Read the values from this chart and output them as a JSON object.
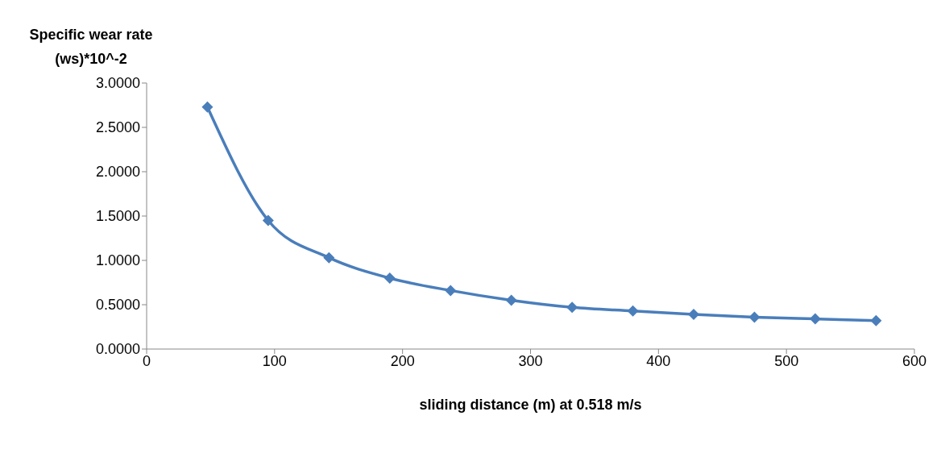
{
  "chart_data": {
    "type": "line",
    "ylabel": "Specific wear rate (ws)*10^-2",
    "xlabel": "sliding distance (m) at 0.518 m/s",
    "x": [
      47.5,
      95,
      142.5,
      190,
      237.5,
      285,
      332.5,
      380,
      427.5,
      475,
      522.5,
      570
    ],
    "series": [
      {
        "color": "#4a7ebb",
        "values": [
          2.73,
          1.45,
          1.03,
          0.8,
          0.66,
          0.55,
          0.47,
          0.43,
          0.39,
          0.36,
          0.34,
          0.32
        ]
      }
    ],
    "xlim": [
      0,
      600
    ],
    "xticks": [
      0,
      100,
      200,
      300,
      400,
      500,
      600
    ],
    "ylim": [
      0,
      3
    ],
    "yticks": [
      {
        "value": 0,
        "label": "0.0000"
      },
      {
        "value": 0.5,
        "label": "0.5000"
      },
      {
        "value": 1,
        "label": "1.0000"
      },
      {
        "value": 1.5,
        "label": "1.5000"
      },
      {
        "value": 2,
        "label": "2.0000"
      },
      {
        "value": 2.5,
        "label": "2.5000"
      },
      {
        "value": 3,
        "label": "3.0000"
      }
    ],
    "marker": "diamond"
  }
}
